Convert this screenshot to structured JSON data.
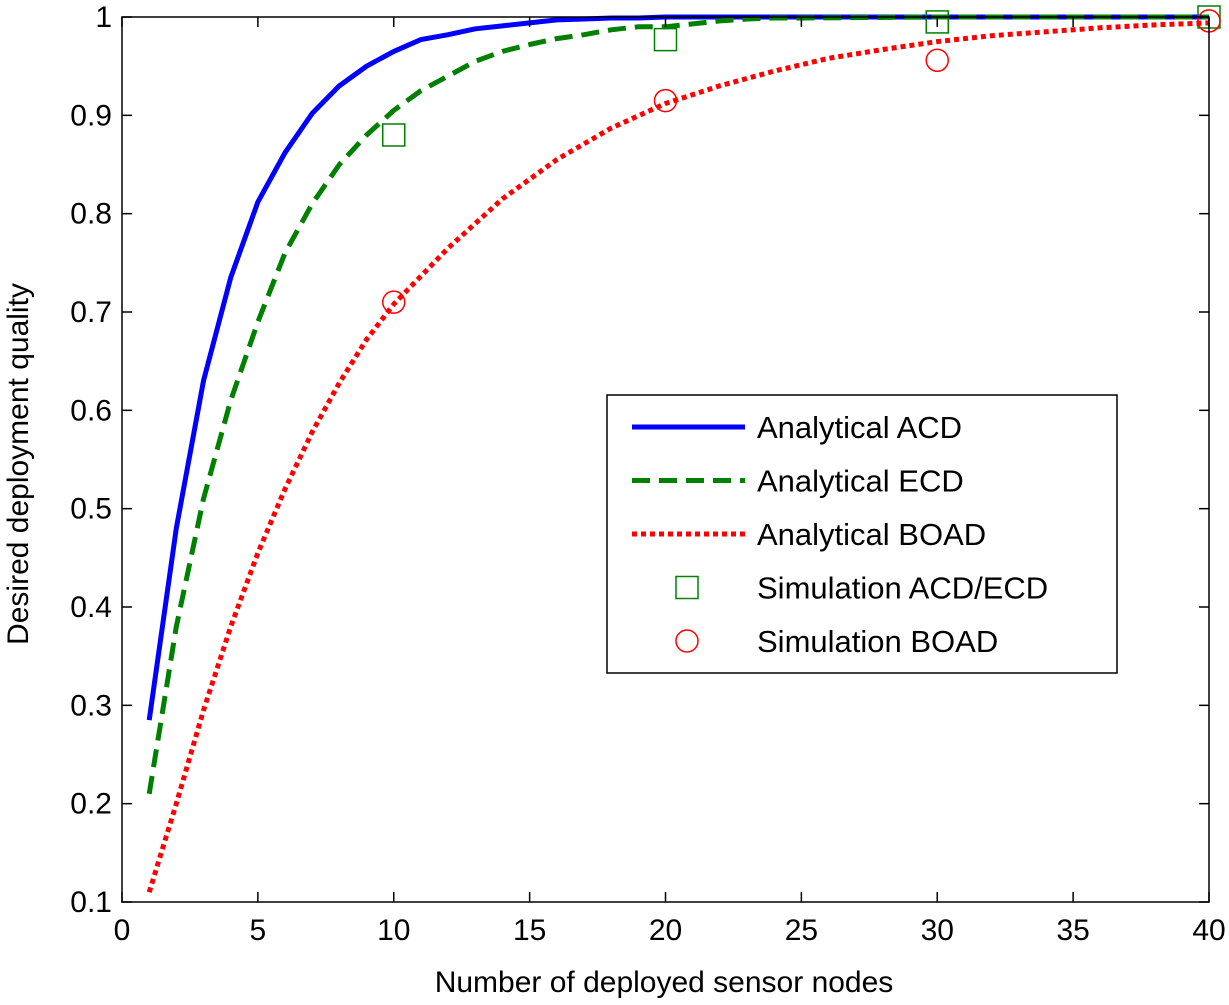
{
  "chart_data": {
    "type": "line",
    "title": "",
    "xlabel": "Number of deployed sensor nodes",
    "ylabel": "Desired deployment quality",
    "xlim": [
      0,
      40
    ],
    "ylim": [
      0.1,
      1.0
    ],
    "xticks": [
      0,
      5,
      10,
      15,
      20,
      25,
      30,
      35,
      40
    ],
    "yticks": [
      0.1,
      0.2,
      0.3,
      0.4,
      0.5,
      0.6,
      0.7,
      0.8,
      0.9,
      1.0
    ],
    "xtick_labels": [
      "0",
      "5",
      "10",
      "15",
      "20",
      "25",
      "30",
      "35",
      "40"
    ],
    "ytick_labels": [
      "0.1",
      "0.2",
      "0.3",
      "0.4",
      "0.5",
      "0.6",
      "0.7",
      "0.8",
      "0.9",
      "1"
    ],
    "grid": false,
    "legend_position": "center-right",
    "series": [
      {
        "name": "Analytical ACD",
        "kind": "line",
        "style": "solid",
        "color": "#0000ff",
        "x": [
          1,
          2,
          3,
          4,
          5,
          6,
          7,
          8,
          9,
          10,
          11,
          12,
          13,
          14,
          15,
          16,
          17,
          18,
          19,
          20,
          22,
          25,
          30,
          35,
          40
        ],
        "y": [
          0.285,
          0.48,
          0.63,
          0.735,
          0.812,
          0.862,
          0.902,
          0.93,
          0.95,
          0.965,
          0.977,
          0.982,
          0.988,
          0.991,
          0.994,
          0.997,
          0.998,
          0.999,
          0.999,
          1.0,
          1.0,
          1.0,
          1.0,
          1.0,
          1.0
        ]
      },
      {
        "name": "Analytical ECD",
        "kind": "line",
        "style": "dashed",
        "color": "#008000",
        "x": [
          1,
          2,
          3,
          4,
          5,
          6,
          7,
          8,
          9,
          10,
          11,
          12,
          13,
          14,
          15,
          16,
          17,
          18,
          19,
          20,
          21,
          22,
          23,
          24,
          25,
          30,
          35,
          40
        ],
        "y": [
          0.21,
          0.38,
          0.51,
          0.61,
          0.69,
          0.76,
          0.81,
          0.85,
          0.88,
          0.905,
          0.925,
          0.94,
          0.955,
          0.965,
          0.972,
          0.978,
          0.982,
          0.987,
          0.99,
          0.99,
          0.993,
          0.996,
          0.998,
          0.999,
          0.999,
          1.0,
          1.0,
          1.0
        ]
      },
      {
        "name": "Analytical BOAD",
        "kind": "line",
        "style": "dotted",
        "color": "#ff0000",
        "x": [
          1,
          2,
          3,
          4,
          5,
          6,
          7,
          8,
          9,
          10,
          12,
          14,
          16,
          18,
          20,
          22,
          24,
          26,
          28,
          30,
          32,
          34,
          36,
          38,
          40
        ],
        "y": [
          0.11,
          0.2,
          0.295,
          0.38,
          0.455,
          0.52,
          0.578,
          0.628,
          0.672,
          0.708,
          0.765,
          0.815,
          0.855,
          0.887,
          0.912,
          0.93,
          0.945,
          0.958,
          0.967,
          0.975,
          0.981,
          0.985,
          0.989,
          0.992,
          0.994
        ]
      },
      {
        "name": "Simulation ACD/ECD",
        "kind": "marker",
        "marker": "square",
        "color": "#008000",
        "x": [
          10,
          20,
          30,
          40
        ],
        "y": [
          0.88,
          0.977,
          0.995,
          1.0
        ]
      },
      {
        "name": "Simulation BOAD",
        "kind": "marker",
        "marker": "circle",
        "color": "#ff0000",
        "x": [
          10,
          20,
          30,
          40
        ],
        "y": [
          0.71,
          0.915,
          0.956,
          0.996
        ]
      }
    ]
  }
}
